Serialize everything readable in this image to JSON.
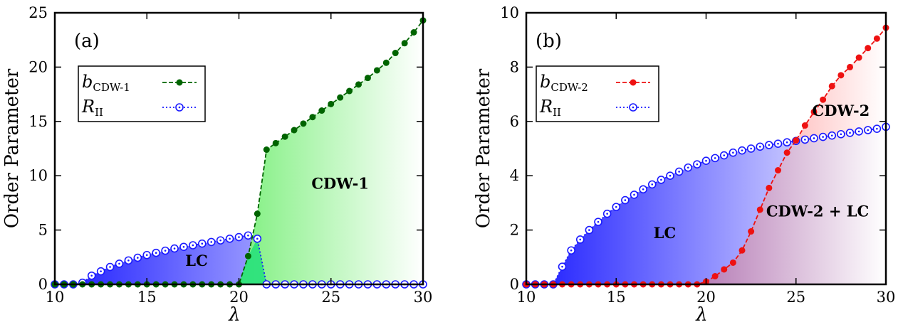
{
  "chart_data": [
    {
      "type": "line",
      "panel_label": "(a)",
      "xlabel": "λ",
      "ylabel": "Order Parameter",
      "xlim": [
        10,
        30
      ],
      "ylim": [
        0,
        25
      ],
      "xticks": [
        "10",
        "15",
        "20",
        "25",
        "30"
      ],
      "yticks": [
        "0",
        "5",
        "10",
        "15",
        "20",
        "25"
      ],
      "grid": false,
      "legend_position": "upper-left",
      "series": [
        {
          "name": "b",
          "name_sub": "CDW-1",
          "color": "#006400",
          "marker": "filled-circle",
          "line": "dashed",
          "x": [
            10,
            10.5,
            11,
            11.5,
            12,
            12.5,
            13,
            13.5,
            14,
            14.5,
            15,
            15.5,
            16,
            16.5,
            17,
            17.5,
            18,
            18.5,
            19,
            19.5,
            20,
            20.5,
            21,
            21.5,
            22,
            22.5,
            23,
            23.5,
            24,
            24.5,
            25,
            25.5,
            26,
            26.5,
            27,
            27.5,
            28,
            28.5,
            29,
            29.5,
            30
          ],
          "values": [
            0,
            0,
            0,
            0,
            0,
            0,
            0,
            0,
            0,
            0,
            0,
            0,
            0,
            0,
            0,
            0,
            0,
            0,
            0,
            0,
            0,
            2.6,
            6.5,
            12.4,
            13.0,
            13.6,
            14.2,
            14.8,
            15.4,
            16.0,
            16.6,
            17.2,
            17.8,
            18.4,
            19.0,
            19.7,
            20.4,
            21.3,
            22.2,
            23.2,
            24.3
          ]
        },
        {
          "name": "R",
          "name_sub": "II",
          "color": "#1a1aff",
          "marker": "open-circle",
          "line": "dotted",
          "x": [
            10,
            10.5,
            11,
            11.5,
            12,
            12.5,
            13,
            13.5,
            14,
            14.5,
            15,
            15.5,
            16,
            16.5,
            17,
            17.5,
            18,
            18.5,
            19,
            19.5,
            20,
            20.5,
            21,
            21.5,
            22,
            22.5,
            23,
            23.5,
            24,
            24.5,
            25,
            25.5,
            26,
            26.5,
            27,
            27.5,
            28,
            28.5,
            29,
            29.5,
            30
          ],
          "values": [
            0,
            0,
            0,
            0.15,
            0.8,
            1.2,
            1.6,
            1.9,
            2.2,
            2.45,
            2.7,
            2.9,
            3.1,
            3.3,
            3.45,
            3.6,
            3.75,
            3.9,
            4.05,
            4.2,
            4.35,
            4.5,
            4.2,
            0,
            0,
            0,
            0,
            0,
            0,
            0,
            0,
            0,
            0,
            0,
            0,
            0,
            0,
            0,
            0,
            0,
            0
          ]
        }
      ],
      "annotations": [
        {
          "text": "LC",
          "x": 17.7,
          "y": 1.7
        },
        {
          "text": "CDW-1",
          "x": 25.5,
          "y": 8.8
        }
      ]
    },
    {
      "type": "line",
      "panel_label": "(b)",
      "xlabel": "λ",
      "ylabel": "Order Parameter",
      "xlim": [
        10,
        30
      ],
      "ylim": [
        0,
        10
      ],
      "xticks": [
        "10",
        "15",
        "20",
        "25",
        "30"
      ],
      "yticks": [
        "0",
        "2",
        "4",
        "6",
        "8",
        "10"
      ],
      "grid": false,
      "legend_position": "upper-left",
      "series": [
        {
          "name": "b",
          "name_sub": "CDW-2",
          "color": "#ee1111",
          "marker": "filled-circle",
          "line": "dashed",
          "x": [
            10,
            10.5,
            11,
            11.5,
            12,
            12.5,
            13,
            13.5,
            14,
            14.5,
            15,
            15.5,
            16,
            16.5,
            17,
            17.5,
            18,
            18.5,
            19,
            19.5,
            20,
            20.5,
            21,
            21.5,
            22,
            22.5,
            23,
            23.5,
            24,
            24.5,
            25,
            25.5,
            26,
            26.5,
            27,
            27.5,
            28,
            28.5,
            29,
            29.5,
            30
          ],
          "values": [
            0,
            0,
            0,
            0,
            0,
            0,
            0,
            0,
            0,
            0,
            0,
            0,
            0,
            0,
            0,
            0,
            0,
            0,
            0,
            0,
            0.1,
            0.3,
            0.55,
            0.8,
            1.25,
            1.95,
            2.75,
            3.55,
            4.2,
            4.85,
            5.3,
            5.85,
            6.35,
            6.8,
            7.3,
            7.7,
            8.0,
            8.35,
            8.7,
            9.05,
            9.45
          ]
        },
        {
          "name": "R",
          "name_sub": "II",
          "color": "#1a1aff",
          "marker": "open-circle",
          "line": "dotted",
          "x": [
            10,
            10.5,
            11,
            11.5,
            12,
            12.5,
            13,
            13.5,
            14,
            14.5,
            15,
            15.5,
            16,
            16.5,
            17,
            17.5,
            18,
            18.5,
            19,
            19.5,
            20,
            20.5,
            21,
            21.5,
            22,
            22.5,
            23,
            23.5,
            24,
            24.5,
            25,
            25.5,
            26,
            26.5,
            27,
            27.5,
            28,
            28.5,
            29,
            29.5,
            30
          ],
          "values": [
            0,
            0,
            0,
            0,
            0.65,
            1.25,
            1.65,
            2.0,
            2.3,
            2.6,
            2.85,
            3.1,
            3.3,
            3.5,
            3.68,
            3.85,
            4.0,
            4.15,
            4.3,
            4.42,
            4.55,
            4.65,
            4.75,
            4.85,
            4.93,
            5.0,
            5.07,
            5.13,
            5.18,
            5.23,
            5.28,
            5.33,
            5.38,
            5.43,
            5.48,
            5.53,
            5.58,
            5.63,
            5.68,
            5.73,
            5.8
          ]
        }
      ],
      "annotations": [
        {
          "text": "LC",
          "x": 17.7,
          "y": 1.7
        },
        {
          "text": "CDW-2",
          "x": 27.5,
          "y": 6.2
        },
        {
          "text": "CDW-2 + LC",
          "x": 26.2,
          "y": 2.5
        }
      ]
    }
  ]
}
